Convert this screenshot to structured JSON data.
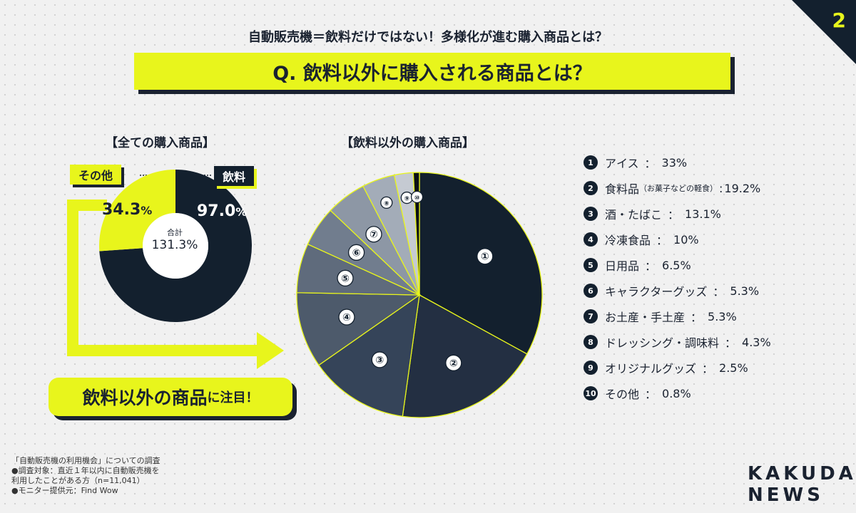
{
  "page_number": "2",
  "header": {
    "subtitle": "自動販売機＝飲料だけではない！多様化が進む購入商品とは？",
    "question": "Q. 飲料以外に購入される商品とは？"
  },
  "donut": {
    "title": "【全ての購入商品】",
    "other_label": "その他",
    "drink_label": "飲料",
    "other_value": "34.3",
    "drink_value": "97.0",
    "pct_unit": "%",
    "total_label": "合計",
    "total_value": "131.3%"
  },
  "pie": {
    "title": "【飲料以外の購入商品】"
  },
  "callout": {
    "main": "飲料以外の商品",
    "rest": "に注目！"
  },
  "chart_data": [
    {
      "type": "pie",
      "title": "【全ての購入商品】",
      "categories": [
        "飲料",
        "その他"
      ],
      "values": [
        97.0,
        34.3
      ],
      "total": 131.3,
      "colors": [
        "#13202e",
        "#e8f51c"
      ]
    },
    {
      "type": "pie",
      "title": "【飲料以外の購入商品】",
      "categories": [
        "アイス",
        "食料品（お菓子などの軽食）",
        "酒・たばこ",
        "冷凍食品",
        "日用品",
        "キャラクターグッズ",
        "お土産・手土産",
        "ドレッシング・調味料",
        "オリジナルグッズ",
        "その他"
      ],
      "values": [
        33,
        19.2,
        13.1,
        10,
        6.5,
        5.3,
        5.3,
        4.3,
        2.5,
        0.8
      ],
      "slice_labels": [
        "①",
        "②",
        "③",
        "④",
        "⑤",
        "⑥",
        "⑦",
        "⑧",
        "⑨",
        "⑩"
      ],
      "colors": [
        "#13202e",
        "#232f42",
        "#354459",
        "#4d5a6b",
        "#5f6b7c",
        "#717d8e",
        "#8d97a5",
        "#a3acb8",
        "#c5cad2",
        "#0a0f16"
      ],
      "legend_placement": "right"
    }
  ],
  "legend": [
    {
      "num": "1",
      "name": "アイス",
      "note": "",
      "sep": "：",
      "value": "33%"
    },
    {
      "num": "2",
      "name": "食料品",
      "note": "（お菓子などの軽食）",
      "sep": ":",
      "value": "19.2%"
    },
    {
      "num": "3",
      "name": "酒・たばこ",
      "note": "",
      "sep": "：",
      "value": "13.1%"
    },
    {
      "num": "4",
      "name": "冷凍食品",
      "note": "",
      "sep": "：",
      "value": "10%"
    },
    {
      "num": "5",
      "name": "日用品",
      "note": "",
      "sep": "：",
      "value": "6.5%"
    },
    {
      "num": "6",
      "name": "キャラクターグッズ",
      "note": "",
      "sep": "：",
      "value": "5.3%"
    },
    {
      "num": "7",
      "name": "お土産・手土産",
      "note": "",
      "sep": "：",
      "value": "5.3%"
    },
    {
      "num": "8",
      "name": "ドレッシング・調味料",
      "note": "",
      "sep": "：",
      "value": "4.3%"
    },
    {
      "num": "9",
      "name": "オリジナルグッズ",
      "note": "",
      "sep": "：",
      "value": "2.5%"
    },
    {
      "num": "10",
      "name": "その他",
      "note": "",
      "sep": "：",
      "value": "0.8%"
    }
  ],
  "footnote": {
    "line1": "「自動販売機の利用機会」についての調査",
    "line2": "●調査対象：直近１年以内に自動販売機を",
    "line3": "利用したことがある方（n=11,041）",
    "line4": "●モニター提供元：Find Wow"
  },
  "brand": {
    "line1": "KAKUDAI",
    "line2": "NEWS"
  }
}
